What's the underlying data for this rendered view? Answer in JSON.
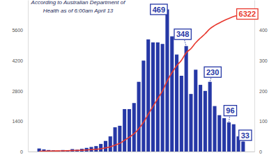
{
  "chart_data": {
    "type": "bar",
    "title": "According to Australian Department of Health as of 6:00am April 13",
    "categories": [
      null,
      null,
      null,
      null,
      null,
      null,
      null,
      null,
      null,
      null,
      null,
      null,
      null,
      null,
      null,
      null,
      null,
      null,
      null,
      null,
      null,
      null,
      null,
      null,
      null,
      null,
      null,
      null,
      null,
      null,
      null,
      null,
      null,
      null,
      null,
      null,
      null,
      null,
      null,
      null,
      null,
      null,
      null,
      null
    ],
    "series": [
      {
        "type": "bar",
        "color": "#2638a6",
        "axis": "y2",
        "values": [
          10,
          7,
          5,
          4,
          3,
          5,
          4,
          8,
          6,
          9,
          12,
          15,
          18,
          25,
          35,
          50,
          80,
          85,
          140,
          140,
          160,
          230,
          300,
          370,
          360,
          360,
          355,
          469,
          380,
          320,
          250,
          348,
          190,
          270,
          220,
          200,
          230,
          150,
          120,
          110,
          96,
          90,
          50,
          33
        ]
      },
      {
        "type": "line",
        "color": "#e8392f",
        "axis": "y",
        "values": [
          10,
          17,
          22,
          26,
          29,
          34,
          38,
          46,
          52,
          61,
          73,
          88,
          106,
          131,
          166,
          216,
          296,
          381,
          521,
          661,
          821,
          1051,
          1351,
          1721,
          2081,
          2441,
          2796,
          3265,
          3645,
          3965,
          4215,
          4563,
          4753,
          5023,
          5243,
          5443,
          5673,
          5823,
          5943,
          6053,
          6149,
          6239,
          6289,
          6322
        ]
      }
    ],
    "ylim": [
      0,
      7000
    ],
    "yticks": [
      0,
      1400,
      2800,
      4200,
      5600
    ],
    "y2lim": [
      0,
      500
    ],
    "y2ticks": [
      0,
      100,
      200,
      300,
      400
    ],
    "annotations": [
      {
        "text": "469",
        "series": 0,
        "index": 27
      },
      {
        "text": "348",
        "series": 0,
        "index": 31
      },
      {
        "text": "230",
        "series": 0,
        "index": 36
      },
      {
        "text": "96",
        "series": 0,
        "index": 40
      },
      {
        "text": "33",
        "series": 0,
        "index": 43
      },
      {
        "text": "6322",
        "series": 1,
        "index": 43
      }
    ]
  }
}
